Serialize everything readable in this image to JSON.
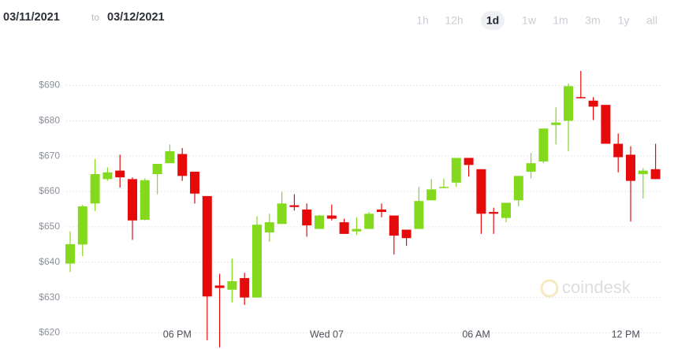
{
  "header": {
    "range": {
      "from": "03/11/2021",
      "sep": "to",
      "to": "03/12/2021"
    },
    "intervals": [
      "1h",
      "12h",
      "1d",
      "1w",
      "1m",
      "3m",
      "1y",
      "all"
    ],
    "selected_interval": 2
  },
  "watermark": "coindesk",
  "chart_data": {
    "type": "candlestick",
    "categories": [
      null,
      null,
      null,
      null,
      null,
      null,
      null,
      null,
      null,
      "06 PM",
      null,
      null,
      null,
      null,
      null,
      null,
      null,
      null,
      null,
      null,
      null,
      "Wed 07",
      null,
      null,
      null,
      null,
      null,
      null,
      null,
      null,
      null,
      null,
      null,
      "06 AM",
      null,
      null,
      null,
      null,
      null,
      null,
      null,
      null,
      null,
      null,
      null,
      "12 PM",
      null,
      null
    ],
    "open": [
      639.6,
      645,
      656.6,
      663.5,
      665.9,
      663.5,
      652,
      664.9,
      668,
      670.6,
      665.6,
      658.7,
      633.4,
      632.2,
      635.5,
      630,
      648.4,
      650.8,
      656.1,
      654.9,
      649.4,
      653.2,
      651.3,
      648.7,
      649.4,
      654.9,
      653.2,
      649.2,
      649.4,
      657.5,
      661.1,
      662.5,
      669.5,
      666.3,
      654.2,
      652.5,
      657.5,
      665.6,
      668.5,
      678.8,
      680,
      686.7,
      685.7,
      684.5,
      673.5,
      670.4,
      664.9,
      666.3
    ],
    "high": [
      648.7,
      656.2,
      669.2,
      666.8,
      670.4,
      664,
      663.7,
      667.8,
      673.3,
      672.3,
      665.6,
      658.7,
      636.7,
      641,
      637,
      653,
      653.7,
      659.9,
      659.2,
      656.6,
      653.4,
      656.3,
      652.3,
      652.7,
      654.2,
      656.6,
      653.2,
      649.2,
      661.3,
      663.5,
      663.7,
      669.5,
      669.5,
      666.3,
      655.4,
      656.8,
      664.4,
      670.9,
      677.8,
      683.8,
      690.5,
      694.1,
      686.7,
      684.5,
      676.4,
      672.8,
      666.6,
      673.5
    ],
    "low": [
      637.2,
      641.7,
      654.5,
      663,
      661.1,
      646.3,
      651.8,
      659.2,
      668,
      663,
      656.6,
      617.9,
      615.9,
      628.6,
      627.9,
      630,
      645.8,
      650.8,
      654.6,
      647.2,
      649.4,
      651.8,
      648,
      647.7,
      649.4,
      652.7,
      642.2,
      644.6,
      649.4,
      657.5,
      661,
      661.3,
      664.2,
      648,
      648,
      651.3,
      655.8,
      663.7,
      668,
      673.3,
      671.4,
      686.4,
      680.2,
      673.5,
      665.4,
      651.5,
      658,
      663.5
    ],
    "close": [
      645.1,
      655.8,
      664.9,
      665.4,
      664,
      651.8,
      663.2,
      667.8,
      671.4,
      664.4,
      659.4,
      630.3,
      632.7,
      634.6,
      630,
      650.6,
      651.3,
      656.6,
      655.6,
      650.4,
      653.2,
      652.3,
      648,
      649.4,
      653.7,
      654.2,
      647.5,
      646.8,
      657.3,
      660.6,
      661.3,
      669.5,
      667.5,
      653.7,
      653.7,
      656.8,
      664.4,
      668,
      677.8,
      679.5,
      689.8,
      686.4,
      684,
      673.5,
      669.7,
      663,
      665.9,
      663.5
    ],
    "up_color": "#84d91f",
    "down_color": "#e60b0b",
    "ylim": [
      616.1,
      700.8
    ],
    "yticks": [
      {
        "value": 620,
        "label": "$620"
      },
      {
        "value": 630,
        "label": "$630"
      },
      {
        "value": 640,
        "label": "$640"
      },
      {
        "value": 650,
        "label": "$650"
      },
      {
        "value": 660,
        "label": "$660"
      },
      {
        "value": 670,
        "label": "$670"
      },
      {
        "value": 680,
        "label": "$680"
      },
      {
        "value": 690,
        "label": "$690"
      }
    ],
    "grid": true
  }
}
